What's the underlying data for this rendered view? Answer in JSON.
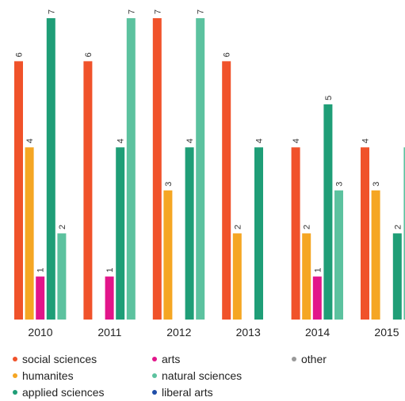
{
  "chart_data": {
    "type": "bar",
    "title": "",
    "xlabel": "",
    "ylabel": "",
    "ylim": [
      0,
      7
    ],
    "grid": false,
    "legend_position": "bottom",
    "categories": [
      "2010",
      "2011",
      "2012",
      "2013",
      "2014",
      "2015"
    ],
    "series": [
      {
        "name": "social sciences",
        "color": "#f0522a",
        "values": [
          6,
          6,
          7,
          6,
          4,
          4
        ]
      },
      {
        "name": "humanites",
        "color": "#f5a623",
        "values": [
          4,
          null,
          3,
          2,
          2,
          3
        ]
      },
      {
        "name": "arts",
        "color": "#e2158a",
        "values": [
          1,
          1,
          null,
          null,
          1,
          null
        ]
      },
      {
        "name": "applied sciences",
        "color": "#1f9e77",
        "values": [
          7,
          4,
          4,
          4,
          5,
          2
        ]
      },
      {
        "name": "natural sciences",
        "color": "#5cc29f",
        "values": [
          2,
          7,
          7,
          null,
          3,
          4
        ]
      },
      {
        "name": "liberal arts",
        "color": "#1f4ea8",
        "values": [
          null,
          null,
          null,
          null,
          null,
          null
        ]
      },
      {
        "name": "other",
        "color": "#999999",
        "values": [
          null,
          null,
          null,
          null,
          null,
          null
        ]
      }
    ]
  },
  "legend": {
    "items": [
      {
        "label": "social sciences",
        "color": "#f0522a"
      },
      {
        "label": "humanites",
        "color": "#f5a623"
      },
      {
        "label": "applied sciences",
        "color": "#1f9e77"
      },
      {
        "label": "arts",
        "color": "#e2158a"
      },
      {
        "label": "natural sciences",
        "color": "#5cc29f"
      },
      {
        "label": "liberal arts",
        "color": "#1f4ea8"
      },
      {
        "label": "other",
        "color": "#999999"
      }
    ]
  }
}
